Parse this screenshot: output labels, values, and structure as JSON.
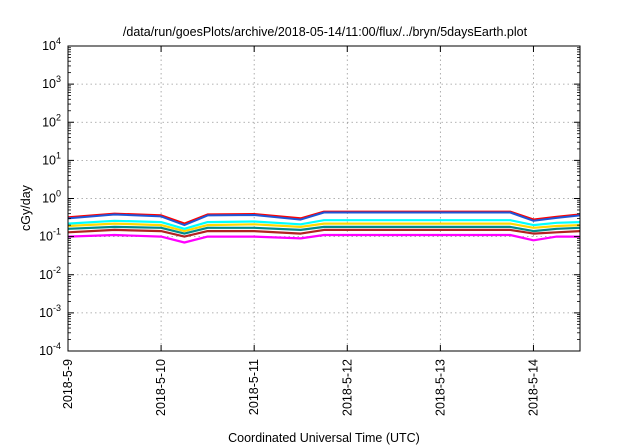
{
  "chart_data": {
    "type": "line",
    "title": "/data/run/goesPlots/archive/2018-05-14/11:00/flux/../bryn/5daysEarth.plot",
    "xlabel": "Coordinated Universal Time (UTC)",
    "ylabel": "cGy/day",
    "yscale": "log",
    "ylim": [
      0.0001,
      10000
    ],
    "y_ticks": [
      {
        "base": "10",
        "exp": "-4"
      },
      {
        "base": "10",
        "exp": "-3"
      },
      {
        "base": "10",
        "exp": "-2"
      },
      {
        "base": "10",
        "exp": "-1"
      },
      {
        "base": "10",
        "exp": "0"
      },
      {
        "base": "10",
        "exp": "1"
      },
      {
        "base": "10",
        "exp": "2"
      },
      {
        "base": "10",
        "exp": "3"
      },
      {
        "base": "10",
        "exp": "4"
      }
    ],
    "xlim": [
      "2018-05-09",
      "2018-05-14T12:00"
    ],
    "x_ticks": [
      "2018-5-9",
      "2018-5-10",
      "2018-5-11",
      "2018-5-12",
      "2018-5-13",
      "2018-5-14"
    ],
    "grid": true,
    "series": [
      {
        "color": "#ff00ff",
        "x": [
          "2018-05-09T00:00",
          "2018-05-09T12:00",
          "2018-05-10T00:00",
          "2018-05-10T06:00",
          "2018-05-10T12:00",
          "2018-05-11T00:00",
          "2018-05-11T12:00",
          "2018-05-11T18:00",
          "2018-05-12T12:00",
          "2018-05-13T12:00",
          "2018-05-13T18:00",
          "2018-05-14T00:00",
          "2018-05-14T06:00",
          "2018-05-14T12:00"
        ],
        "values": [
          0.1,
          0.11,
          0.1,
          0.07,
          0.1,
          0.1,
          0.09,
          0.11,
          0.11,
          0.11,
          0.11,
          0.08,
          0.1,
          0.1
        ]
      },
      {
        "color": "#b22222",
        "x": [
          "2018-05-09T00:00",
          "2018-05-09T12:00",
          "2018-05-10T00:00",
          "2018-05-10T06:00",
          "2018-05-10T12:00",
          "2018-05-11T00:00",
          "2018-05-11T12:00",
          "2018-05-11T18:00",
          "2018-05-12T12:00",
          "2018-05-13T12:00",
          "2018-05-13T18:00",
          "2018-05-14T00:00",
          "2018-05-14T06:00",
          "2018-05-14T12:00"
        ],
        "values": [
          0.13,
          0.15,
          0.14,
          0.1,
          0.14,
          0.14,
          0.12,
          0.15,
          0.15,
          0.15,
          0.15,
          0.12,
          0.13,
          0.14
        ]
      },
      {
        "color": "#008b8b",
        "x": [
          "2018-05-09T00:00",
          "2018-05-09T12:00",
          "2018-05-10T00:00",
          "2018-05-10T06:00",
          "2018-05-10T12:00",
          "2018-05-11T00:00",
          "2018-05-11T12:00",
          "2018-05-11T18:00",
          "2018-05-12T12:00",
          "2018-05-13T12:00",
          "2018-05-13T18:00",
          "2018-05-14T00:00",
          "2018-05-14T06:00",
          "2018-05-14T12:00"
        ],
        "values": [
          0.16,
          0.18,
          0.17,
          0.12,
          0.17,
          0.17,
          0.15,
          0.18,
          0.18,
          0.18,
          0.18,
          0.14,
          0.16,
          0.17
        ]
      },
      {
        "color": "#ffd700",
        "x": [
          "2018-05-09T00:00",
          "2018-05-09T12:00",
          "2018-05-10T00:00",
          "2018-05-10T06:00",
          "2018-05-10T12:00",
          "2018-05-11T00:00",
          "2018-05-11T12:00",
          "2018-05-11T18:00",
          "2018-05-12T12:00",
          "2018-05-13T12:00",
          "2018-05-13T18:00",
          "2018-05-14T00:00",
          "2018-05-14T06:00",
          "2018-05-14T12:00"
        ],
        "values": [
          0.19,
          0.22,
          0.2,
          0.14,
          0.2,
          0.21,
          0.18,
          0.22,
          0.22,
          0.22,
          0.22,
          0.17,
          0.19,
          0.2
        ]
      },
      {
        "color": "#00ffff",
        "x": [
          "2018-05-09T00:00",
          "2018-05-09T12:00",
          "2018-05-10T00:00",
          "2018-05-10T06:00",
          "2018-05-10T12:00",
          "2018-05-11T00:00",
          "2018-05-11T12:00",
          "2018-05-11T18:00",
          "2018-05-12T12:00",
          "2018-05-13T12:00",
          "2018-05-13T18:00",
          "2018-05-14T00:00",
          "2018-05-14T06:00",
          "2018-05-14T12:00"
        ],
        "values": [
          0.22,
          0.26,
          0.24,
          0.16,
          0.24,
          0.25,
          0.21,
          0.27,
          0.27,
          0.27,
          0.27,
          0.2,
          0.23,
          0.24
        ]
      },
      {
        "color": "#ff0000",
        "x": [
          "2018-05-09T00:00",
          "2018-05-09T12:00",
          "2018-05-10T00:00",
          "2018-05-10T06:00",
          "2018-05-10T12:00",
          "2018-05-11T00:00",
          "2018-05-11T12:00",
          "2018-05-11T18:00",
          "2018-05-12T12:00",
          "2018-05-13T12:00",
          "2018-05-13T18:00",
          "2018-05-14T00:00",
          "2018-05-14T06:00",
          "2018-05-14T12:00"
        ],
        "values": [
          0.32,
          0.4,
          0.36,
          0.22,
          0.38,
          0.39,
          0.3,
          0.45,
          0.45,
          0.45,
          0.45,
          0.28,
          0.33,
          0.38
        ]
      },
      {
        "color": "#1e56d8",
        "x": [
          "2018-05-09T00:00",
          "2018-05-09T12:00",
          "2018-05-10T00:00",
          "2018-05-10T06:00",
          "2018-05-10T12:00",
          "2018-05-11T00:00",
          "2018-05-11T12:00",
          "2018-05-11T18:00",
          "2018-05-12T12:00",
          "2018-05-13T12:00",
          "2018-05-13T18:00",
          "2018-05-14T00:00",
          "2018-05-14T06:00",
          "2018-05-14T12:00"
        ],
        "values": [
          0.3,
          0.38,
          0.34,
          0.2,
          0.36,
          0.37,
          0.28,
          0.43,
          0.43,
          0.43,
          0.43,
          0.26,
          0.31,
          0.36
        ]
      }
    ]
  }
}
